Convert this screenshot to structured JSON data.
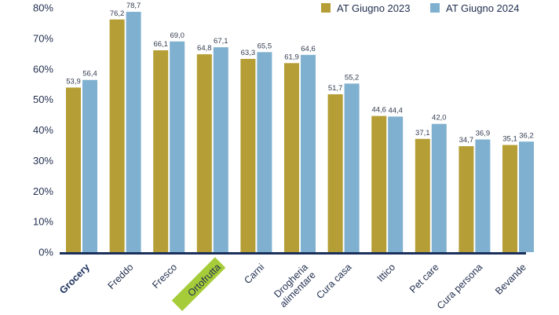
{
  "chart_data": {
    "type": "bar",
    "title": "",
    "xlabel": "",
    "ylabel": "",
    "ylim": [
      0,
      80
    ],
    "yticks": [
      0,
      10,
      20,
      30,
      40,
      50,
      60,
      70,
      80
    ],
    "ytick_labels": [
      "0%",
      "10%",
      "20%",
      "30%",
      "40%",
      "50%",
      "60%",
      "70%",
      "80%"
    ],
    "grid": false,
    "legend_position": "top-right",
    "categories": [
      "Grocery",
      "Freddo",
      "Fresco",
      "Ortofrutta",
      "Carni",
      "Drogheria alimentare",
      "Cura casa",
      "Ittico",
      "Pet care",
      "Cura persona",
      "Bevande"
    ],
    "category_lines": [
      [
        "Grocery"
      ],
      [
        "Freddo"
      ],
      [
        "Fresco"
      ],
      [
        "Ortofrutta"
      ],
      [
        "Carni"
      ],
      [
        "Drogheria",
        "alimentare"
      ],
      [
        "Cura casa"
      ],
      [
        "Ittico"
      ],
      [
        "Pet care"
      ],
      [
        "Cura persona"
      ],
      [
        "Bevande"
      ]
    ],
    "highlight_bold": "Grocery",
    "highlight_box": "Ortofrutta",
    "highlight_box_color": "#a6cc3a",
    "series": [
      {
        "name": "AT Giugno 2023",
        "color": "#b59e35",
        "values": [
          53.9,
          76.2,
          66.1,
          64.8,
          63.3,
          61.9,
          51.7,
          44.6,
          37.1,
          34.7,
          35.1
        ],
        "labels": [
          "53,9",
          "76,2",
          "66,1",
          "64,8",
          "63,3",
          "61,9",
          "51,7",
          "44,6",
          "37,1",
          "34,7",
          "35,1"
        ]
      },
      {
        "name": "AT Giugno 2024",
        "color": "#7fb0cf",
        "values": [
          56.4,
          78.7,
          69.0,
          67.1,
          65.5,
          64.6,
          55.2,
          44.4,
          42.0,
          36.9,
          36.2
        ],
        "labels": [
          "56,4",
          "78,7",
          "69,0",
          "67,1",
          "65,5",
          "64,6",
          "55,2",
          "44,4",
          "42,0",
          "36,9",
          "36,2"
        ]
      }
    ],
    "axis_color": "#1a2f5a"
  }
}
